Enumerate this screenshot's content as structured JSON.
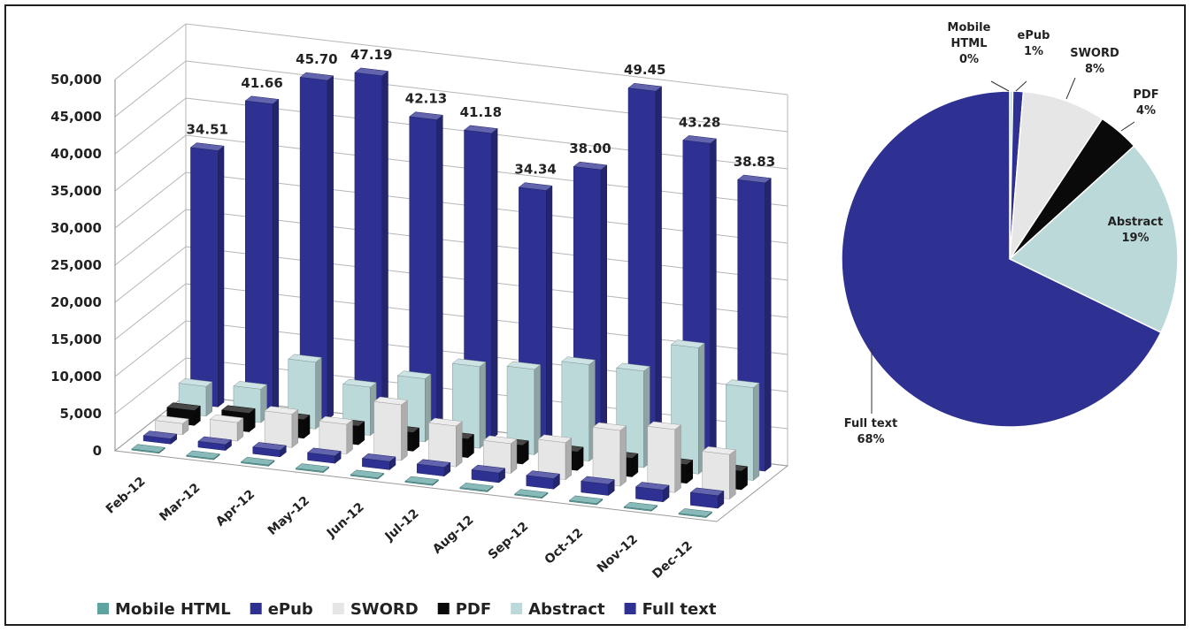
{
  "chart_data": [
    {
      "type": "bar",
      "title": "",
      "xlabel": "",
      "ylabel": "",
      "ylim": [
        0,
        50000
      ],
      "y_ticks": [
        "0",
        "5,000",
        "10,000",
        "15,000",
        "20,000",
        "25,000",
        "30,000",
        "35,000",
        "40,000",
        "45,000",
        "50,000"
      ],
      "categories": [
        "Feb-12",
        "Mar-12",
        "Apr-12",
        "May-12",
        "Jun-12",
        "Jul-12",
        "Aug-12",
        "Sep-12",
        "Oct-12",
        "Nov-12",
        "Dec-12"
      ],
      "grid": true,
      "legend": "bottom",
      "series": [
        {
          "name": "Mobile HTML",
          "color": "#5fa3a0",
          "values": [
            150,
            150,
            150,
            150,
            150,
            150,
            150,
            150,
            150,
            150,
            150
          ]
        },
        {
          "name": "ePub",
          "color": "#2e3192",
          "values": [
            700,
            800,
            900,
            1000,
            1100,
            1200,
            1300,
            1400,
            1500,
            1600,
            1700
          ]
        },
        {
          "name": "SWORD",
          "color": "#e6e6e6",
          "values": [
            1500,
            2500,
            4500,
            4000,
            7500,
            5500,
            4000,
            5000,
            7500,
            8500,
            6000
          ]
        },
        {
          "name": "PDF",
          "color": "#0a0a0a",
          "values": [
            2000,
            2500,
            2500,
            2500,
            2500,
            2500,
            2500,
            2500,
            2500,
            2500,
            2500
          ]
        },
        {
          "name": "Abstract",
          "color": "#bcd9da",
          "values": [
            4000,
            4500,
            9000,
            6500,
            8500,
            11000,
            11500,
            13000,
            13000,
            17000,
            12500
          ]
        },
        {
          "name": "Full text",
          "color": "#2e3192",
          "values": [
            34510,
            41660,
            45700,
            47190,
            42130,
            41180,
            34340,
            38000,
            49450,
            43280,
            38830
          ],
          "data_labels": [
            "34.51",
            "41.66",
            "45.70",
            "47.19",
            "42.13",
            "41.18",
            "34.34",
            "38.00",
            "49.45",
            "43.28",
            "38.83"
          ]
        }
      ]
    },
    {
      "type": "pie",
      "title": "",
      "slices": [
        {
          "name": "Mobile HTML",
          "value": 0.3,
          "label_parts": [
            "Mobile",
            "HTML",
            "0%"
          ],
          "color": "#bcd9da"
        },
        {
          "name": "ePub",
          "value": 1,
          "label_parts": [
            "ePub",
            "1%"
          ],
          "color": "#2e3192"
        },
        {
          "name": "SWORD",
          "value": 8,
          "label_parts": [
            "SWORD",
            "8%"
          ],
          "color": "#e6e6e6"
        },
        {
          "name": "PDF",
          "value": 4,
          "label_parts": [
            "PDF",
            "4%"
          ],
          "color": "#0a0a0a"
        },
        {
          "name": "Abstract",
          "value": 19,
          "label_parts": [
            "Abstract",
            "19%"
          ],
          "color": "#bcd9da"
        },
        {
          "name": "Full text",
          "value": 68,
          "label_parts": [
            "Full text",
            "68%"
          ],
          "color": "#2e3192"
        }
      ]
    }
  ]
}
